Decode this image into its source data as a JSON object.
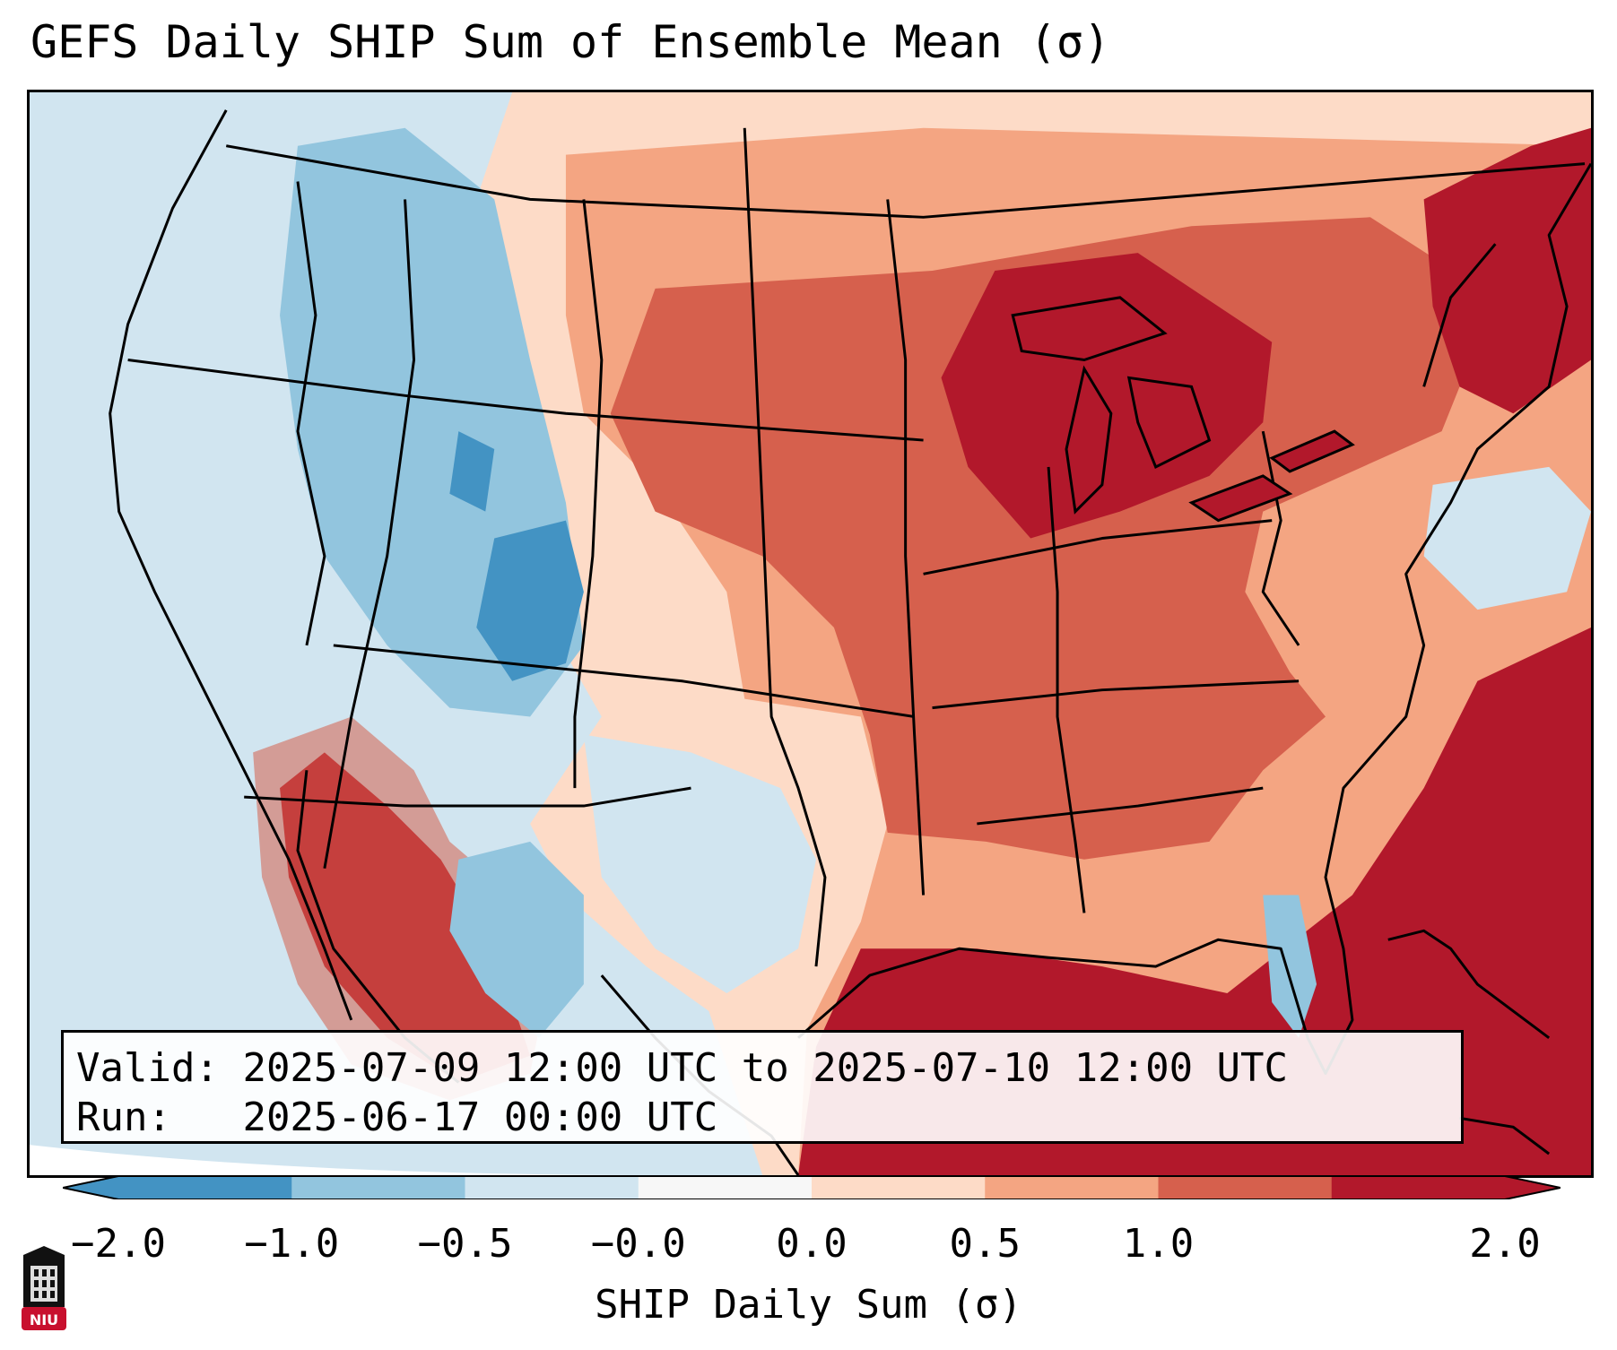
{
  "title": "GEFS Daily SHIP Sum of Ensemble Mean (σ)",
  "info": {
    "valid_label": "Valid:",
    "valid_value": "2025-07-09 12:00 UTC to 2025-07-10 12:00 UTC",
    "run_label": "Run:",
    "run_value": "2025-06-17 00:00 UTC"
  },
  "colorbar": {
    "label": "SHIP Daily Sum (σ)",
    "ticks": [
      "−2.0",
      "−1.0",
      "−0.5",
      "−0.0",
      "0.0",
      "0.5",
      "1.0",
      "2.0"
    ],
    "colors": [
      "#4393c3",
      "#92c5de",
      "#d1e5f0",
      "#f7f7f7",
      "#fddbc7",
      "#f4a582",
      "#d6604d",
      "#b2182b"
    ],
    "extend": "both"
  },
  "logo": {
    "text": "NIU"
  }
}
